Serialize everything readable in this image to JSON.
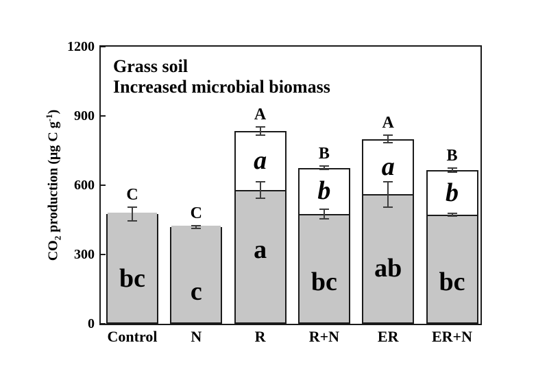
{
  "figure": {
    "ylabel": {
      "pre": "CO",
      "sub": "2",
      "mid": " production (μg C g",
      "sup": "-1",
      "post": ")"
    }
  },
  "colors": {
    "bar_fill": "#c6c6c6",
    "bar_border": "#1a1a1a",
    "error_bar": "#3d3d3d",
    "text": "#000000",
    "background": "#ffffff"
  },
  "chart_data": {
    "type": "bar",
    "stacked": true,
    "title": "Grass soil",
    "subtitle": "Increased microbial biomass",
    "ylabel": "CO2 production (ug C g-1)",
    "xlabel": "",
    "categories": [
      "Control",
      "N",
      "R",
      "R+N",
      "ER",
      "ER+N"
    ],
    "series": [
      {
        "name": "gray-bottom-segment",
        "values": [
          475,
          420,
          580,
          475,
          560,
          472
        ]
      },
      {
        "name": "white-top-segment",
        "values": [
          0,
          0,
          255,
          200,
          240,
          193
        ]
      }
    ],
    "totals": [
      475,
      420,
      835,
      675,
      800,
      665
    ],
    "gray_segment_errors": [
      30,
      6,
      36,
      20,
      54,
      6
    ],
    "total_errors": [
      null,
      null,
      18,
      8,
      17,
      8
    ],
    "letters_above_bars": [
      "C",
      "C",
      "A",
      "B",
      "A",
      "B"
    ],
    "letters_in_white_segment": [
      "",
      "",
      "a",
      "b",
      "a",
      "b"
    ],
    "letters_in_gray_segment": [
      "bc",
      "c",
      "a",
      "bc",
      "ab",
      "bc"
    ],
    "letters_in_gray_y_positions": [
      195,
      140,
      320,
      180,
      240,
      180
    ],
    "ylim": [
      0,
      1200
    ],
    "yticks": [
      0,
      300,
      600,
      900,
      1200
    ],
    "legend": "none",
    "grid": false
  }
}
